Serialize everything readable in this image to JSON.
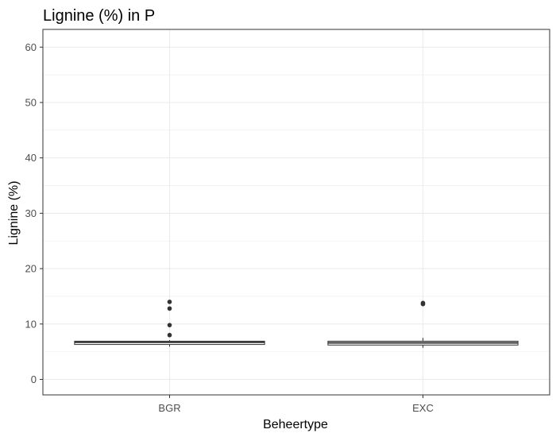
{
  "chart_data": {
    "type": "boxplot",
    "title": "Lignine (%) in P",
    "xlabel": "Beheertype",
    "ylabel": "Lignine (%)",
    "categories": [
      "BGR",
      "EXC"
    ],
    "ylim": [
      -2.8,
      63.2
    ],
    "yticks": [
      0,
      10,
      20,
      30,
      40,
      50,
      60
    ],
    "grid": true,
    "series": [
      {
        "category": "BGR",
        "min": 5.9,
        "q1": 6.3,
        "median": 6.7,
        "q3": 6.9,
        "max": 7.1,
        "outliers": [
          8.0,
          9.8,
          12.8,
          14.0
        ]
      },
      {
        "category": "EXC",
        "min": 5.7,
        "q1": 6.2,
        "median": 6.6,
        "q3": 6.9,
        "max": 7.5,
        "outliers": [
          13.6,
          13.8
        ]
      }
    ],
    "colors": {
      "box_fill": "#ffffff",
      "box_stroke": "#333333",
      "outlier": "#333333",
      "grid": "#ebebeb",
      "panel_border": "#333333",
      "tick_label": "#4d4d4d"
    }
  }
}
